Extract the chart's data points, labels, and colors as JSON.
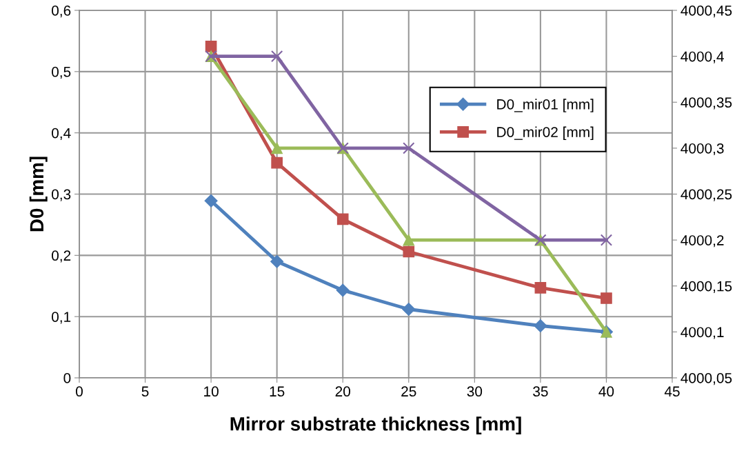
{
  "chart_data": {
    "type": "line",
    "xlabel": "Mirror substrate thickness [mm]",
    "ylabel": "D0 [mm]",
    "x": [
      10,
      15,
      20,
      25,
      35,
      40
    ],
    "series": [
      {
        "name": "D0_mir01 [mm]",
        "color": "#4f81bd",
        "marker": "diamond",
        "values": [
          0.289,
          0.19,
          0.143,
          0.112,
          0.085,
          0.075
        ]
      },
      {
        "name": "D0_mir02 [mm]",
        "color": "#c0504d",
        "marker": "square",
        "values": [
          0.541,
          0.351,
          0.259,
          0.206,
          0.147,
          0.13
        ]
      },
      {
        "color": "#9bbb59",
        "marker": "triangle",
        "axis": "y2",
        "values": [
          4000.4,
          4000.3,
          4000.3,
          4000.2,
          4000.2,
          4000.1
        ]
      },
      {
        "color": "#8064a2",
        "marker": "cross",
        "axis": "y2",
        "values": [
          4000.4,
          4000.4,
          4000.3,
          4000.3,
          4000.2,
          4000.2
        ]
      }
    ],
    "xlim": [
      0,
      45
    ],
    "xticks": [
      0,
      5,
      10,
      15,
      20,
      25,
      30,
      35,
      40,
      45
    ],
    "ylim": [
      0,
      0.6
    ],
    "yticks": [
      {
        "value": 0,
        "label": "0"
      },
      {
        "value": 0.1,
        "label": "0,1"
      },
      {
        "value": 0.2,
        "label": "0,2"
      },
      {
        "value": 0.3,
        "label": "0,3"
      },
      {
        "value": 0.4,
        "label": "0,4"
      },
      {
        "value": 0.5,
        "label": "0,5"
      },
      {
        "value": 0.6,
        "label": "0,6"
      }
    ],
    "y2lim": [
      4000.05,
      4000.45
    ],
    "y2ticks": [
      {
        "value": 4000.05,
        "label": "4000,05"
      },
      {
        "value": 4000.1,
        "label": "4000,1"
      },
      {
        "value": 4000.15,
        "label": "4000,15"
      },
      {
        "value": 4000.2,
        "label": "4000,2"
      },
      {
        "value": 4000.25,
        "label": "4000,25"
      },
      {
        "value": 4000.3,
        "label": "4000,3"
      },
      {
        "value": 4000.35,
        "label": "4000,35"
      },
      {
        "value": 4000.4,
        "label": "4000,4"
      },
      {
        "value": 4000.45,
        "label": "4000,45"
      }
    ],
    "grid": true,
    "legend": "top right",
    "line_style": "solid"
  }
}
